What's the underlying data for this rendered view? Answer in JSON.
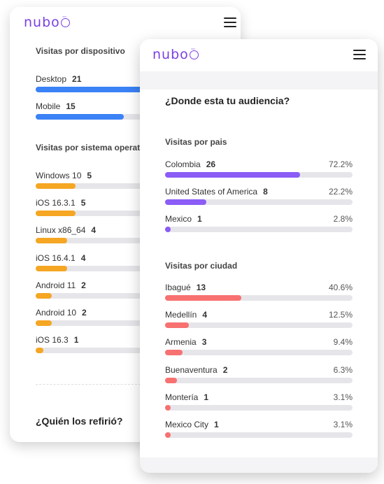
{
  "back": {
    "logo": "nubo",
    "device_section": {
      "title": "Visitas por dispositivo",
      "items": [
        {
          "label": "Desktop",
          "count": "21",
          "fraction": 0.58
        },
        {
          "label": "Mobile",
          "count": "15",
          "fraction": 0.42
        }
      ]
    },
    "os_section": {
      "title": "Visitas por sistema operativo",
      "items": [
        {
          "label": "Windows 10",
          "count": "5",
          "fraction": 0.19
        },
        {
          "label": "iOS 16.3.1",
          "count": "5",
          "fraction": 0.19
        },
        {
          "label": "Linux x86_64",
          "count": "4",
          "fraction": 0.15
        },
        {
          "label": "iOS 16.4.1",
          "count": "4",
          "fraction": 0.15
        },
        {
          "label": "Android 11",
          "count": "2",
          "fraction": 0.075
        },
        {
          "label": "Android 10",
          "count": "2",
          "fraction": 0.075
        },
        {
          "label": "iOS 16.3",
          "count": "1",
          "fraction": 0.037
        }
      ]
    },
    "referral_title": "¿Quién los refirió?"
  },
  "front": {
    "logo": "nubo",
    "main_title": "¿Donde esta tu audiencia?",
    "country_section": {
      "title": "Visitas por pais",
      "color": "#8b5cf6",
      "items": [
        {
          "label": "Colombia",
          "count": "26",
          "pct": "72.2%",
          "fraction": 0.722
        },
        {
          "label": "United States of America",
          "count": "8",
          "pct": "22.2%",
          "fraction": 0.222
        },
        {
          "label": "Mexico",
          "count": "1",
          "pct": "2.8%",
          "fraction": 0.028
        }
      ]
    },
    "city_section": {
      "title": "Visitas por ciudad",
      "color": "#f87171",
      "items": [
        {
          "label": "Ibagué",
          "count": "13",
          "pct": "40.6%",
          "fraction": 0.406
        },
        {
          "label": "Medellín",
          "count": "4",
          "pct": "12.5%",
          "fraction": 0.125
        },
        {
          "label": "Armenia",
          "count": "3",
          "pct": "9.4%",
          "fraction": 0.094
        },
        {
          "label": "Buenaventura",
          "count": "2",
          "pct": "6.3%",
          "fraction": 0.063
        },
        {
          "label": "Montería",
          "count": "1",
          "pct": "3.1%",
          "fraction": 0.031
        },
        {
          "label": "Mexico City",
          "count": "1",
          "pct": "3.1%",
          "fraction": 0.031
        }
      ]
    }
  },
  "colors": {
    "brand": "#7b3fe4",
    "device_bar": "#3b82f6",
    "os_bar": "#f5a623",
    "country_bar": "#8b5cf6",
    "city_bar": "#f87171",
    "track": "#e6e6ea"
  }
}
